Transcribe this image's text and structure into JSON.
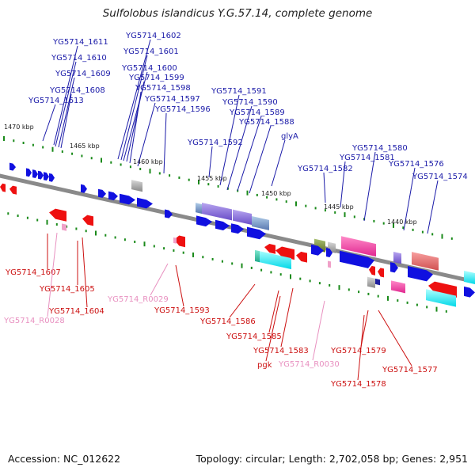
{
  "title": "Sulfolobus islandicus Y.G.57.14, complete genome",
  "footer": {
    "accession": "Accession: NC_012622",
    "summary": "Topology: circular; Length: 2,702,058 bp; Genes: 2,951"
  },
  "colors": {
    "forward_cds": "#1010e0",
    "reverse_cds": "#ee1010",
    "reverse_rna": "#f0a0c8",
    "top_label": "#1a1aa8",
    "bottom_label": "#cc1010",
    "rna_label": "#e890c0",
    "backbone": "#8a8a8a",
    "tick": "#1a8a1a"
  },
  "ruler": [
    "1470 kbp",
    "1465 kbp",
    "1460 kbp",
    "1455 kbp",
    "1450 kbp",
    "1445 kbp",
    "1440 kbp"
  ],
  "top_labels": [
    "YG5714_1611",
    "YG5714_1610",
    "YG5714_1609",
    "YG5714_1608",
    "YG5714_1613",
    "YG5714_1602",
    "YG5714_1601",
    "YG5714_1600",
    "YG5714_1599",
    "YG5714_1598",
    "YG5714_1597",
    "YG5714_1596",
    "YG5714_1591",
    "YG5714_1590",
    "YG5714_1589",
    "YG5714_1588",
    "YG5714_1592",
    "glyA",
    "YG5714_1580",
    "YG5714_1581",
    "YG5714_1582",
    "YG5714_1576",
    "YG5714_1574"
  ],
  "bottom_labels": [
    "YG5714_1607",
    "YG5714_1605",
    "YG5714_1604",
    "YG5714_R0028",
    "YG5714_R0029",
    "YG5714_1593",
    "YG5714_1586",
    "YG5714_1585",
    "YG5714_1583",
    "pgk",
    "YG5714_R0030",
    "YG5714_1579",
    "YG5714_1578",
    "YG5714_1577"
  ]
}
